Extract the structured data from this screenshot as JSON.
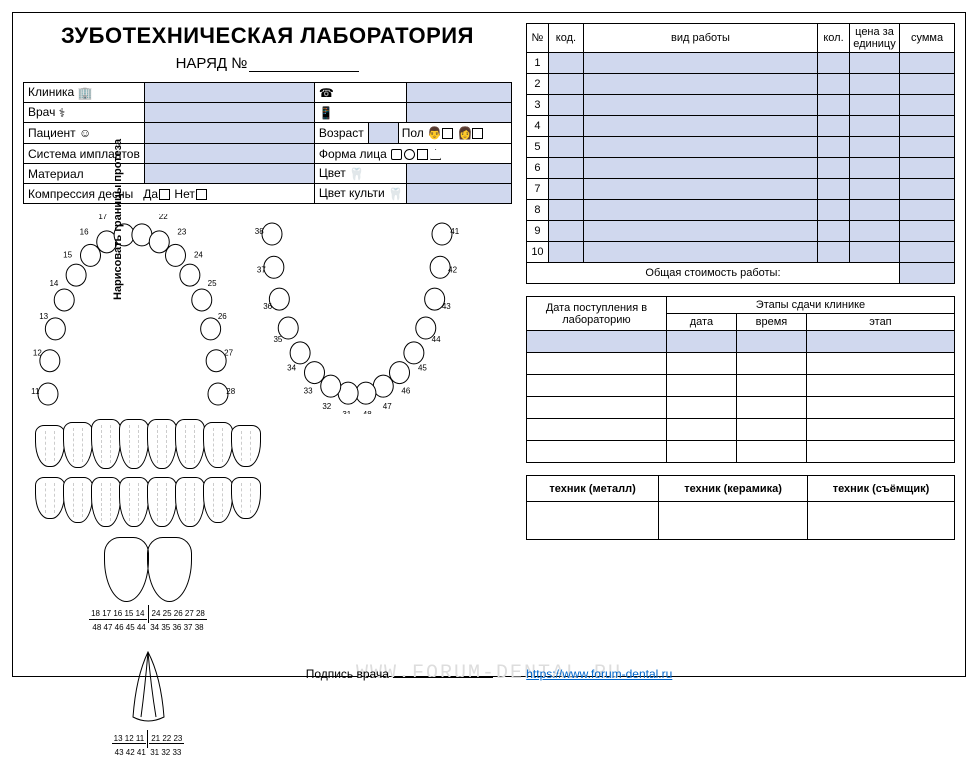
{
  "title": "ЗУБОТЕХНИЧЕСКАЯ ЛАБОРАТОРИЯ",
  "subtitle": "НАРЯД №",
  "info": {
    "clinic": "Клиника",
    "doctor": "Врач",
    "patient": "Пациент",
    "age": "Возраст",
    "sex": "Пол",
    "implant_system": "Система имплантов",
    "face_shape": "Форма лица",
    "material": "Материал",
    "color": "Цвет",
    "gum_compression": "Компрессия десны",
    "yes": "Да",
    "no": "Нет",
    "stump_color": "Цвет культи"
  },
  "diagram": {
    "vertical_label": "Нарисовать границы протеза",
    "upper_teeth": [
      11,
      12,
      13,
      14,
      15,
      16,
      17,
      18,
      21,
      22,
      23,
      24,
      25,
      26,
      27,
      28
    ],
    "lower_teeth": [
      48,
      47,
      46,
      45,
      44,
      43,
      42,
      41,
      31,
      32,
      33,
      34,
      35,
      36,
      37,
      38
    ],
    "num_strip1_top": "18 17 16 15 14",
    "num_strip1_top2": "24 25 26 27 28",
    "num_strip1_bot": "48 47 46 45 44",
    "num_strip1_bot2": "34 35 36 37 38",
    "num_strip2_top": "13 12 11",
    "num_strip2_top2": "21 22 23",
    "num_strip2_bot": "43 42 41",
    "num_strip2_bot2": "31 32 33"
  },
  "work_table": {
    "headers": {
      "num": "№",
      "code": "код.",
      "type": "вид работы",
      "qty": "кол.",
      "price": "цена за единицу",
      "sum": "сумма"
    },
    "rows": [
      1,
      2,
      3,
      4,
      5,
      6,
      7,
      8,
      9,
      10
    ],
    "total_label": "Общая стоимость работы:"
  },
  "stage_table": {
    "h1": "Дата поступления в лабораторию",
    "h2": "Этапы сдачи клинике",
    "date": "дата",
    "time": "время",
    "stage": "этап",
    "row_count": 6
  },
  "tech_table": {
    "h1": "техник (металл)",
    "h2": "техник (керамика)",
    "h3": "техник (съёмщик)"
  },
  "footer": {
    "signature": "Подпись врача",
    "link_text": "https://www.forum-dental.ru",
    "watermark": "WWW.FORUM-DENTAL.RU"
  },
  "colors": {
    "fill": "#d0d8ee",
    "border": "#000000",
    "link": "#0066cc"
  }
}
